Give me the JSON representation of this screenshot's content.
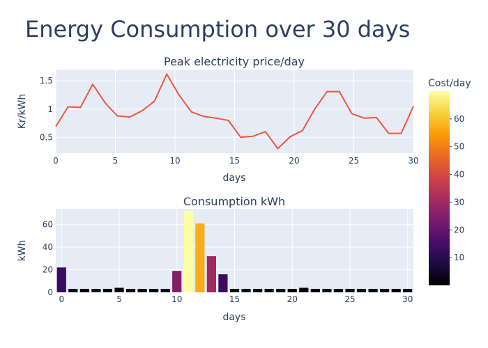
{
  "title": "Energy Consumption over 30 days",
  "colors": {
    "plot_bg": "#e5ecf6",
    "grid": "#ffffff",
    "line": "#ef553b",
    "text": "#2a3f5f"
  },
  "colorbar": {
    "title": "Cost/day",
    "ticks": [
      10,
      20,
      30,
      40,
      50,
      60
    ],
    "min": 0,
    "max": 70,
    "colorscale": [
      "#000004",
      "#1b0c41",
      "#4a0c6b",
      "#781c6d",
      "#a52c60",
      "#cf4446",
      "#ed6925",
      "#fb9b06",
      "#f7d13d",
      "#fcffa4"
    ]
  },
  "chart_data": [
    {
      "type": "line",
      "title": "Peak electricity price/day",
      "xlabel": "days",
      "ylabel": "Kr/kWh",
      "xlim": [
        0,
        30
      ],
      "ylim": [
        0.22,
        1.7
      ],
      "x_ticks": [
        0,
        5,
        10,
        15,
        20,
        25,
        30
      ],
      "y_ticks": [
        0.5,
        1,
        1.5
      ],
      "y_tick_labels": [
        "0.5",
        "1",
        "1.5"
      ],
      "x": [
        0,
        1.03,
        2.07,
        3.1,
        4.14,
        5.17,
        6.21,
        7.24,
        8.28,
        9.31,
        10.34,
        11.38,
        12.41,
        13.45,
        14.48,
        15.52,
        16.55,
        17.59,
        18.62,
        19.66,
        20.69,
        21.72,
        22.76,
        23.79,
        24.83,
        25.86,
        26.9,
        27.93,
        28.97,
        30
      ],
      "y": [
        0.69,
        1.04,
        1.03,
        1.44,
        1.11,
        0.88,
        0.86,
        0.97,
        1.14,
        1.62,
        1.25,
        0.95,
        0.87,
        0.84,
        0.8,
        0.5,
        0.52,
        0.6,
        0.3,
        0.51,
        0.62,
        1.0,
        1.31,
        1.31,
        0.92,
        0.84,
        0.85,
        0.57,
        0.57,
        1.05
      ]
    },
    {
      "type": "bar",
      "title": "Consumption kWh",
      "xlabel": "days",
      "ylabel": "kWh",
      "xlim": [
        -0.5,
        30.5
      ],
      "ylim": [
        0,
        74
      ],
      "x_ticks": [
        0,
        5,
        10,
        15,
        20,
        25,
        30
      ],
      "y_ticks": [
        0,
        20,
        40,
        60
      ],
      "x": [
        0,
        1,
        2,
        3,
        4,
        5,
        6,
        7,
        8,
        9,
        10,
        11,
        12,
        13,
        14,
        15,
        16,
        17,
        18,
        19,
        20,
        21,
        22,
        23,
        24,
        25,
        26,
        27,
        28,
        29,
        30
      ],
      "values": [
        22,
        3,
        3,
        3,
        3,
        4,
        3,
        3,
        3,
        3,
        19,
        72,
        61,
        32,
        16,
        3,
        3,
        3,
        3,
        3,
        3,
        4,
        3,
        3,
        3,
        3,
        3,
        3,
        3,
        3,
        3
      ],
      "cost": [
        13,
        1,
        1,
        1,
        1,
        1,
        1,
        1,
        1,
        1,
        25,
        70,
        57,
        30,
        13,
        1,
        1,
        1,
        1,
        1,
        1,
        1,
        1,
        1,
        1,
        1,
        1,
        1,
        1,
        1,
        1
      ]
    }
  ]
}
